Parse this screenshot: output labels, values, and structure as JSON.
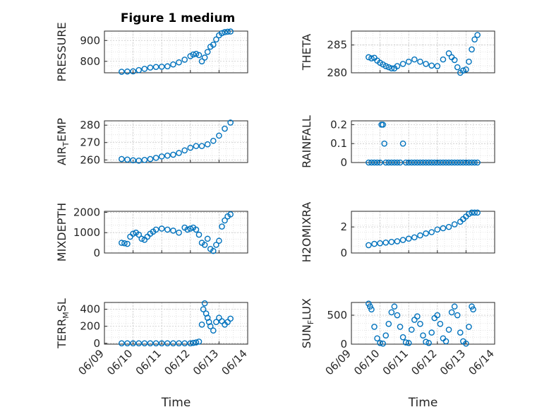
{
  "figure": {
    "title": "Figure 1 medium",
    "marker_color": "#0072BD",
    "grid": "dotted minor + major",
    "x_axis": {
      "label": "Time",
      "tick_labels": [
        "06/09",
        "06/10",
        "06/11",
        "06/12",
        "06/13",
        "06/14"
      ]
    }
  },
  "chart_data": [
    {
      "type": "scatter",
      "title": "Figure 1 medium",
      "ylabel": "PRESSURE",
      "ylabel_parts": {
        "base": "PRESSURE",
        "sub": "",
        "rest": ""
      },
      "ylim": [
        745,
        945
      ],
      "yticks": [
        800,
        900
      ],
      "ytick_labels": [
        "800",
        "900"
      ],
      "xlim": [
        0,
        5
      ],
      "x": [
        0.6,
        0.8,
        1.0,
        1.2,
        1.4,
        1.6,
        1.8,
        2.0,
        2.2,
        2.4,
        2.6,
        2.8,
        3.0,
        3.1,
        3.2,
        3.3,
        3.4,
        3.5,
        3.6,
        3.7,
        3.8,
        3.9,
        4.0,
        4.1,
        4.2,
        4.3,
        4.4
      ],
      "y": [
        750,
        751,
        752,
        758,
        764,
        770,
        773,
        774,
        776,
        785,
        795,
        808,
        825,
        833,
        836,
        830,
        800,
        818,
        845,
        870,
        880,
        905,
        925,
        935,
        940,
        942,
        943
      ],
      "xlabel": ""
    },
    {
      "type": "scatter",
      "ylabel": "THETA",
      "ylabel_parts": {
        "base": "THETA",
        "sub": "",
        "rest": ""
      },
      "ylim": [
        280,
        287.5
      ],
      "yticks": [
        280,
        285
      ],
      "ytick_labels": [
        "280",
        "285"
      ],
      "xlim": [
        0,
        5
      ],
      "x": [
        0.6,
        0.7,
        0.8,
        0.9,
        1.0,
        1.1,
        1.2,
        1.3,
        1.4,
        1.5,
        1.6,
        1.8,
        2.0,
        2.2,
        2.4,
        2.6,
        2.8,
        3.0,
        3.2,
        3.4,
        3.5,
        3.6,
        3.7,
        3.8,
        3.9,
        4.0,
        4.1,
        4.2,
        4.3,
        4.4
      ],
      "y": [
        282.8,
        282.6,
        282.7,
        282.2,
        281.8,
        281.5,
        281.2,
        281.0,
        280.8,
        280.8,
        281.2,
        281.6,
        282.0,
        282.4,
        282.0,
        281.6,
        281.3,
        281.2,
        282.4,
        283.5,
        282.8,
        282.3,
        281.0,
        280.0,
        280.4,
        280.6,
        282.0,
        284.2,
        286.0,
        286.8
      ],
      "xlabel": ""
    },
    {
      "type": "scatter",
      "ylabel": "AIRTEMP",
      "ylabel_parts": {
        "base": "AIR",
        "sub": "T",
        "rest": "EMP"
      },
      "ylim": [
        258.5,
        282.5
      ],
      "yticks": [
        260,
        270,
        280
      ],
      "ytick_labels": [
        "260",
        "270",
        "280"
      ],
      "xlim": [
        0,
        5
      ],
      "x": [
        0.6,
        0.8,
        1.0,
        1.2,
        1.4,
        1.6,
        1.8,
        2.0,
        2.2,
        2.4,
        2.6,
        2.8,
        3.0,
        3.2,
        3.4,
        3.6,
        3.8,
        4.0,
        4.2,
        4.4
      ],
      "y": [
        260.5,
        260.2,
        259.8,
        259.6,
        260.0,
        260.5,
        261.2,
        262.0,
        262.5,
        263.0,
        264.0,
        265.5,
        267.0,
        268.0,
        268.0,
        269.0,
        271.0,
        274.0,
        278.0,
        281.5
      ],
      "xlabel": ""
    },
    {
      "type": "scatter",
      "ylabel": "RAINFALL",
      "ylabel_parts": {
        "base": "RAINFALL",
        "sub": "",
        "rest": ""
      },
      "ylim": [
        0,
        0.22
      ],
      "yticks": [
        0,
        0.1,
        0.2
      ],
      "ytick_labels": [
        "0",
        "0.1",
        "0.2"
      ],
      "xlim": [
        0,
        5
      ],
      "x": [
        0.6,
        0.7,
        0.8,
        0.9,
        1.0,
        1.05,
        1.1,
        1.15,
        1.2,
        1.3,
        1.4,
        1.5,
        1.6,
        1.7,
        1.8,
        1.9,
        2.0,
        2.1,
        2.2,
        2.3,
        2.4,
        2.5,
        2.6,
        2.7,
        2.8,
        2.9,
        3.0,
        3.1,
        3.2,
        3.3,
        3.4,
        3.5,
        3.6,
        3.7,
        3.8,
        3.9,
        4.0,
        4.1,
        4.2,
        4.3,
        4.4
      ],
      "y": [
        0,
        0,
        0,
        0,
        0,
        0.2,
        0.2,
        0.1,
        0,
        0,
        0,
        0,
        0,
        0,
        0.1,
        0,
        0,
        0,
        0,
        0,
        0,
        0,
        0,
        0,
        0,
        0,
        0,
        0,
        0,
        0,
        0,
        0,
        0,
        0,
        0,
        0,
        0,
        0,
        0,
        0,
        0
      ],
      "xlabel": ""
    },
    {
      "type": "scatter",
      "ylabel": "MIXDEPTH",
      "ylabel_parts": {
        "base": "MIXDEPTH",
        "sub": "",
        "rest": ""
      },
      "ylim": [
        0,
        2050
      ],
      "yticks": [
        0,
        1000,
        2000
      ],
      "ytick_labels": [
        "0",
        "1000",
        "2000"
      ],
      "xlim": [
        0,
        5
      ],
      "x": [
        0.6,
        0.7,
        0.8,
        0.9,
        1.0,
        1.1,
        1.2,
        1.3,
        1.4,
        1.5,
        1.6,
        1.7,
        1.8,
        2.0,
        2.2,
        2.4,
        2.6,
        2.8,
        2.9,
        3.0,
        3.1,
        3.2,
        3.3,
        3.4,
        3.5,
        3.6,
        3.7,
        3.8,
        3.9,
        4.0,
        4.1,
        4.2,
        4.3,
        4.4
      ],
      "y": [
        500,
        480,
        450,
        800,
        950,
        1000,
        900,
        700,
        650,
        800,
        950,
        1050,
        1150,
        1200,
        1150,
        1100,
        1000,
        1250,
        1150,
        1200,
        1250,
        1150,
        900,
        500,
        400,
        700,
        200,
        100,
        400,
        600,
        1300,
        1600,
        1800,
        1900
      ],
      "xlabel": ""
    },
    {
      "type": "scatter",
      "ylabel": "H2OMIXRA",
      "ylabel_parts": {
        "base": "H2OMIXRA",
        "sub": "",
        "rest": ""
      },
      "ylim": [
        0,
        3.2
      ],
      "yticks": [
        0,
        2
      ],
      "ytick_labels": [
        "0",
        "2"
      ],
      "xlim": [
        0,
        5
      ],
      "x": [
        0.6,
        0.8,
        1.0,
        1.2,
        1.4,
        1.6,
        1.8,
        2.0,
        2.2,
        2.4,
        2.6,
        2.8,
        3.0,
        3.2,
        3.4,
        3.6,
        3.8,
        3.9,
        4.0,
        4.1,
        4.2,
        4.3,
        4.4
      ],
      "y": [
        0.6,
        0.7,
        0.75,
        0.8,
        0.85,
        0.9,
        1.0,
        1.1,
        1.2,
        1.35,
        1.5,
        1.6,
        1.8,
        1.9,
        2.0,
        2.2,
        2.4,
        2.6,
        2.8,
        3.0,
        3.1,
        3.1,
        3.1
      ],
      "xlabel": ""
    },
    {
      "type": "scatter",
      "ylabel": "TERRMSL",
      "ylabel_parts": {
        "base": "TERR",
        "sub": "M",
        "rest": "SL"
      },
      "ylim": [
        -10,
        480
      ],
      "yticks": [
        0,
        200,
        400
      ],
      "ytick_labels": [
        "0",
        "200",
        "400"
      ],
      "xlim": [
        0,
        5
      ],
      "x": [
        0.6,
        0.8,
        1.0,
        1.2,
        1.4,
        1.6,
        1.8,
        2.0,
        2.2,
        2.4,
        2.6,
        2.8,
        3.0,
        3.1,
        3.2,
        3.3,
        3.4,
        3.45,
        3.5,
        3.55,
        3.6,
        3.65,
        3.7,
        3.8,
        3.9,
        4.0,
        4.1,
        4.2,
        4.3,
        4.4
      ],
      "y": [
        0,
        0,
        0,
        0,
        0,
        0,
        0,
        0,
        0,
        0,
        0,
        0,
        0,
        5,
        10,
        20,
        220,
        400,
        470,
        350,
        300,
        250,
        200,
        150,
        250,
        300,
        260,
        220,
        250,
        290
      ],
      "xlabel": "Time"
    },
    {
      "type": "scatter",
      "ylabel": "SUNFLUX",
      "ylabel_parts": {
        "base": "SUN",
        "sub": "F",
        "rest": "LUX"
      },
      "ylim": [
        0,
        720
      ],
      "yticks": [
        0,
        500
      ],
      "ytick_labels": [
        "0",
        "500"
      ],
      "xlim": [
        0,
        5
      ],
      "x": [
        0.6,
        0.65,
        0.7,
        0.8,
        0.9,
        1.0,
        1.1,
        1.2,
        1.3,
        1.4,
        1.5,
        1.6,
        1.7,
        1.8,
        1.9,
        2.0,
        2.1,
        2.2,
        2.3,
        2.4,
        2.5,
        2.6,
        2.7,
        2.8,
        2.9,
        3.0,
        3.1,
        3.2,
        3.3,
        3.4,
        3.5,
        3.6,
        3.7,
        3.8,
        3.9,
        4.0,
        4.1,
        4.2,
        4.25
      ],
      "y": [
        700,
        650,
        600,
        300,
        100,
        20,
        10,
        150,
        350,
        550,
        650,
        500,
        300,
        120,
        30,
        20,
        250,
        420,
        480,
        350,
        150,
        40,
        20,
        200,
        450,
        500,
        350,
        100,
        50,
        250,
        550,
        650,
        500,
        200,
        50,
        10,
        300,
        650,
        600
      ],
      "xlabel": "Time"
    }
  ]
}
